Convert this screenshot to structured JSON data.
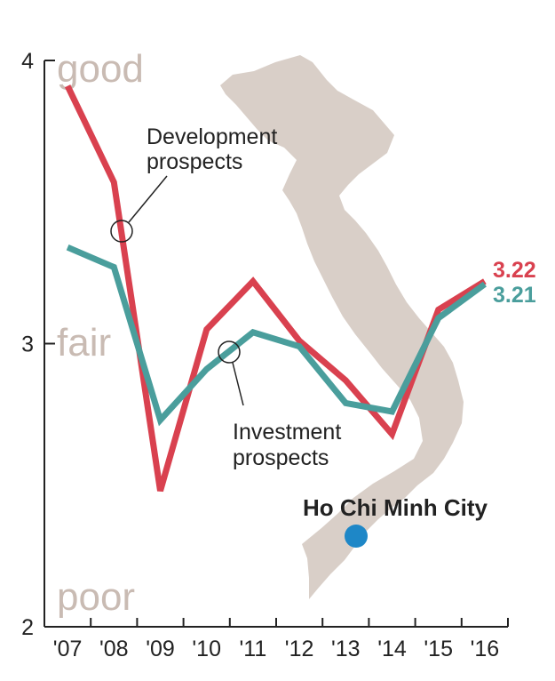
{
  "chart_data": {
    "type": "line",
    "categories": [
      "'07",
      "'08",
      "'09",
      "'10",
      "'11",
      "'12",
      "'13",
      "'14",
      "'15",
      "'16"
    ],
    "series": [
      {
        "name": "Development prospects",
        "values": [
          3.91,
          3.57,
          2.48,
          3.05,
          3.22,
          3.01,
          2.87,
          2.68,
          3.12,
          3.22
        ],
        "end_label": "3.22",
        "color": "#d9414f"
      },
      {
        "name": "Investment prospects",
        "values": [
          3.34,
          3.27,
          2.73,
          2.91,
          3.04,
          2.99,
          2.79,
          2.76,
          3.09,
          3.21
        ],
        "end_label": "3.21",
        "color": "#4a9e9c"
      }
    ],
    "ylim": [
      2,
      4
    ],
    "y_ticks": [
      "2",
      "3",
      "4"
    ],
    "y_quality_words": {
      "high": "good",
      "mid": "fair",
      "low": "poor"
    },
    "grid": false,
    "legend": "none",
    "annotations": {
      "development_callout": [
        "Development",
        "prospects"
      ],
      "investment_callout": [
        "Investment",
        "prospects"
      ],
      "city_label": "Ho Chi Minh City"
    },
    "colors": {
      "map_fill": "#d9cfc8",
      "city_marker": "#1e87c7",
      "quality_word": "#c9bbb3",
      "axis": "#222222"
    }
  }
}
